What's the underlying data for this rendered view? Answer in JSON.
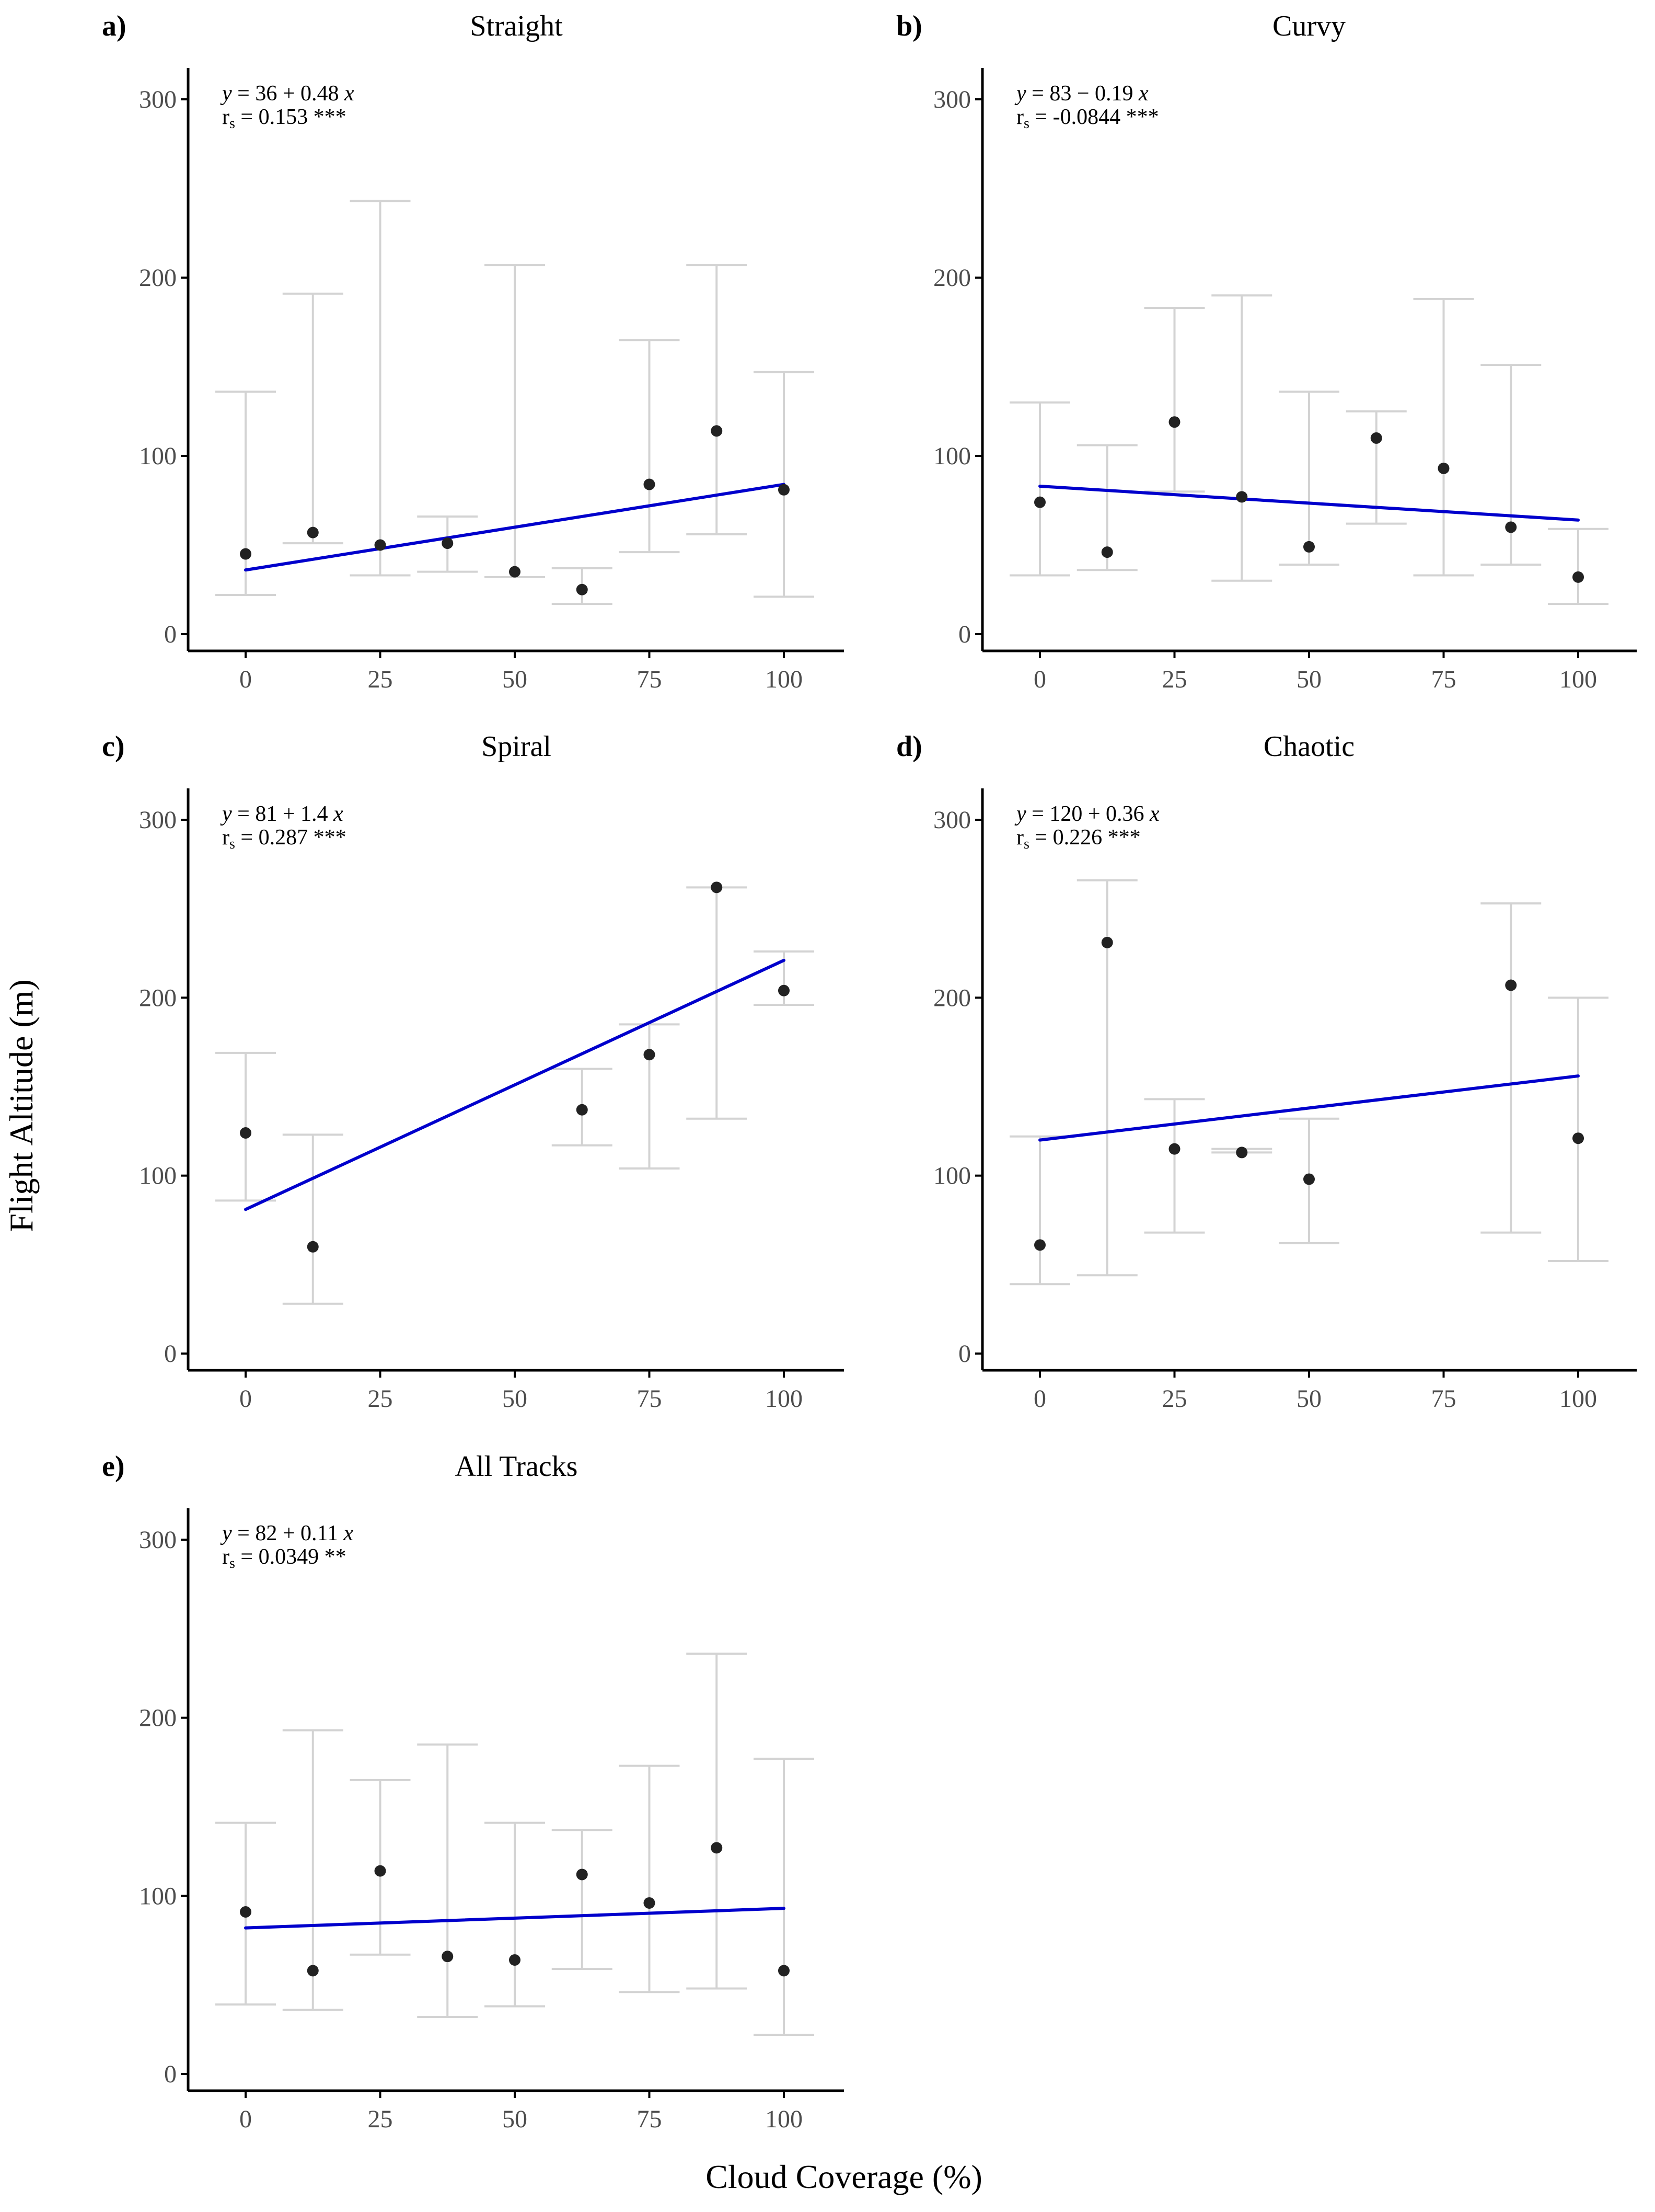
{
  "figure": {
    "ylabel": "Flight Altitude (m)",
    "xlabel": "Cloud Coverage (%)"
  },
  "colors": {
    "fit_line": "#0000cc",
    "error_bar": "#d3d3d3",
    "point": "#222222",
    "axis": "#000000"
  },
  "chart_data": [
    {
      "type": "scatter",
      "panel": "a)",
      "title": "Straight",
      "equation": {
        "y": "y",
        "rhs": " = 36 + 0.48 ",
        "x": "x"
      },
      "stat": {
        "r": "r",
        "sub": "s",
        "rhs": " = 0.153 ***"
      },
      "xlim": [
        0,
        100
      ],
      "ylim": [
        0,
        300
      ],
      "xticks": [
        0,
        25,
        50,
        75,
        100
      ],
      "yticks": [
        0,
        100,
        200,
        300
      ],
      "grid": false,
      "fit": {
        "intercept": 36,
        "slope": 0.48,
        "x_range": [
          0,
          100
        ]
      },
      "points": [
        {
          "x": 0,
          "y": 45,
          "lo": 22,
          "hi": 136
        },
        {
          "x": 12.5,
          "y": 57,
          "lo": 51,
          "hi": 191
        },
        {
          "x": 25,
          "y": 50,
          "lo": 33,
          "hi": 243
        },
        {
          "x": 37.5,
          "y": 51,
          "lo": 35,
          "hi": 66
        },
        {
          "x": 50,
          "y": 35,
          "lo": 32,
          "hi": 207
        },
        {
          "x": 62.5,
          "y": 25,
          "lo": 17,
          "hi": 37
        },
        {
          "x": 75,
          "y": 84,
          "lo": 46,
          "hi": 165
        },
        {
          "x": 87.5,
          "y": 114,
          "lo": 56,
          "hi": 207
        },
        {
          "x": 100,
          "y": 81,
          "lo": 21,
          "hi": 147
        }
      ]
    },
    {
      "type": "scatter",
      "panel": "b)",
      "title": "Curvy",
      "equation": {
        "y": "y",
        "rhs": " = 83 − 0.19 ",
        "x": "x"
      },
      "stat": {
        "r": "r",
        "sub": "s",
        "rhs": " = -0.0844 ***"
      },
      "xlim": [
        0,
        100
      ],
      "ylim": [
        0,
        300
      ],
      "xticks": [
        0,
        25,
        50,
        75,
        100
      ],
      "yticks": [
        0,
        100,
        200,
        300
      ],
      "grid": false,
      "fit": {
        "intercept": 83,
        "slope": -0.19,
        "x_range": [
          0,
          100
        ]
      },
      "points": [
        {
          "x": 0,
          "y": 74,
          "lo": 33,
          "hi": 130
        },
        {
          "x": 12.5,
          "y": 46,
          "lo": 36,
          "hi": 106
        },
        {
          "x": 25,
          "y": 119,
          "lo": 80,
          "hi": 183
        },
        {
          "x": 37.5,
          "y": 77,
          "lo": 30,
          "hi": 190
        },
        {
          "x": 50,
          "y": 49,
          "lo": 39,
          "hi": 136
        },
        {
          "x": 62.5,
          "y": 110,
          "lo": 62,
          "hi": 125
        },
        {
          "x": 75,
          "y": 93,
          "lo": 33,
          "hi": 188
        },
        {
          "x": 87.5,
          "y": 60,
          "lo": 39,
          "hi": 151
        },
        {
          "x": 100,
          "y": 32,
          "lo": 17,
          "hi": 59
        }
      ]
    },
    {
      "type": "scatter",
      "panel": "c)",
      "title": "Spiral",
      "equation": {
        "y": "y",
        "rhs": " = 81 + 1.4 ",
        "x": "x"
      },
      "stat": {
        "r": "r",
        "sub": "s",
        "rhs": " = 0.287 ***"
      },
      "xlim": [
        0,
        100
      ],
      "ylim": [
        0,
        300
      ],
      "xticks": [
        0,
        25,
        50,
        75,
        100
      ],
      "yticks": [
        0,
        100,
        200,
        300
      ],
      "grid": false,
      "fit": {
        "intercept": 81,
        "slope": 1.4,
        "x_range": [
          0,
          100
        ]
      },
      "points": [
        {
          "x": 0,
          "y": 124,
          "lo": 86,
          "hi": 169
        },
        {
          "x": 12.5,
          "y": 60,
          "lo": 28,
          "hi": 123
        },
        {
          "x": 62.5,
          "y": 137,
          "lo": 117,
          "hi": 160
        },
        {
          "x": 75,
          "y": 168,
          "lo": 104,
          "hi": 185
        },
        {
          "x": 87.5,
          "y": 262,
          "lo": 132,
          "hi": 262
        },
        {
          "x": 100,
          "y": 204,
          "lo": 196,
          "hi": 226
        }
      ]
    },
    {
      "type": "scatter",
      "panel": "d)",
      "title": "Chaotic",
      "equation": {
        "y": "y",
        "rhs": " = 120 + 0.36 ",
        "x": "x"
      },
      "stat": {
        "r": "r",
        "sub": "s",
        "rhs": " = 0.226 ***"
      },
      "xlim": [
        0,
        100
      ],
      "ylim": [
        0,
        300
      ],
      "xticks": [
        0,
        25,
        50,
        75,
        100
      ],
      "yticks": [
        0,
        100,
        200,
        300
      ],
      "grid": false,
      "fit": {
        "intercept": 120,
        "slope": 0.36,
        "x_range": [
          0,
          100
        ]
      },
      "points": [
        {
          "x": 0,
          "y": 61,
          "lo": 39,
          "hi": 122
        },
        {
          "x": 12.5,
          "y": 231,
          "lo": 44,
          "hi": 266
        },
        {
          "x": 25,
          "y": 115,
          "lo": 68,
          "hi": 143
        },
        {
          "x": 37.5,
          "y": 113,
          "lo": 113,
          "hi": 115
        },
        {
          "x": 50,
          "y": 98,
          "lo": 62,
          "hi": 132
        },
        {
          "x": 87.5,
          "y": 207,
          "lo": 68,
          "hi": 253
        },
        {
          "x": 100,
          "y": 121,
          "lo": 52,
          "hi": 200
        }
      ]
    },
    {
      "type": "scatter",
      "panel": "e)",
      "title": "All Tracks",
      "equation": {
        "y": "y",
        "rhs": " = 82 + 0.11 ",
        "x": "x"
      },
      "stat": {
        "r": "r",
        "sub": "s",
        "rhs": " = 0.0349 **"
      },
      "xlim": [
        0,
        100
      ],
      "ylim": [
        0,
        300
      ],
      "xticks": [
        0,
        25,
        50,
        75,
        100
      ],
      "yticks": [
        0,
        100,
        200,
        300
      ],
      "grid": false,
      "fit": {
        "intercept": 82,
        "slope": 0.11,
        "x_range": [
          0,
          100
        ]
      },
      "points": [
        {
          "x": 0,
          "y": 91,
          "lo": 39,
          "hi": 141
        },
        {
          "x": 12.5,
          "y": 58,
          "lo": 36,
          "hi": 193
        },
        {
          "x": 25,
          "y": 114,
          "lo": 67,
          "hi": 165
        },
        {
          "x": 37.5,
          "y": 66,
          "lo": 32,
          "hi": 185
        },
        {
          "x": 50,
          "y": 64,
          "lo": 38,
          "hi": 141
        },
        {
          "x": 62.5,
          "y": 112,
          "lo": 59,
          "hi": 137
        },
        {
          "x": 75,
          "y": 96,
          "lo": 46,
          "hi": 173
        },
        {
          "x": 87.5,
          "y": 127,
          "lo": 48,
          "hi": 236
        },
        {
          "x": 100,
          "y": 58,
          "lo": 22,
          "hi": 177
        }
      ]
    }
  ]
}
